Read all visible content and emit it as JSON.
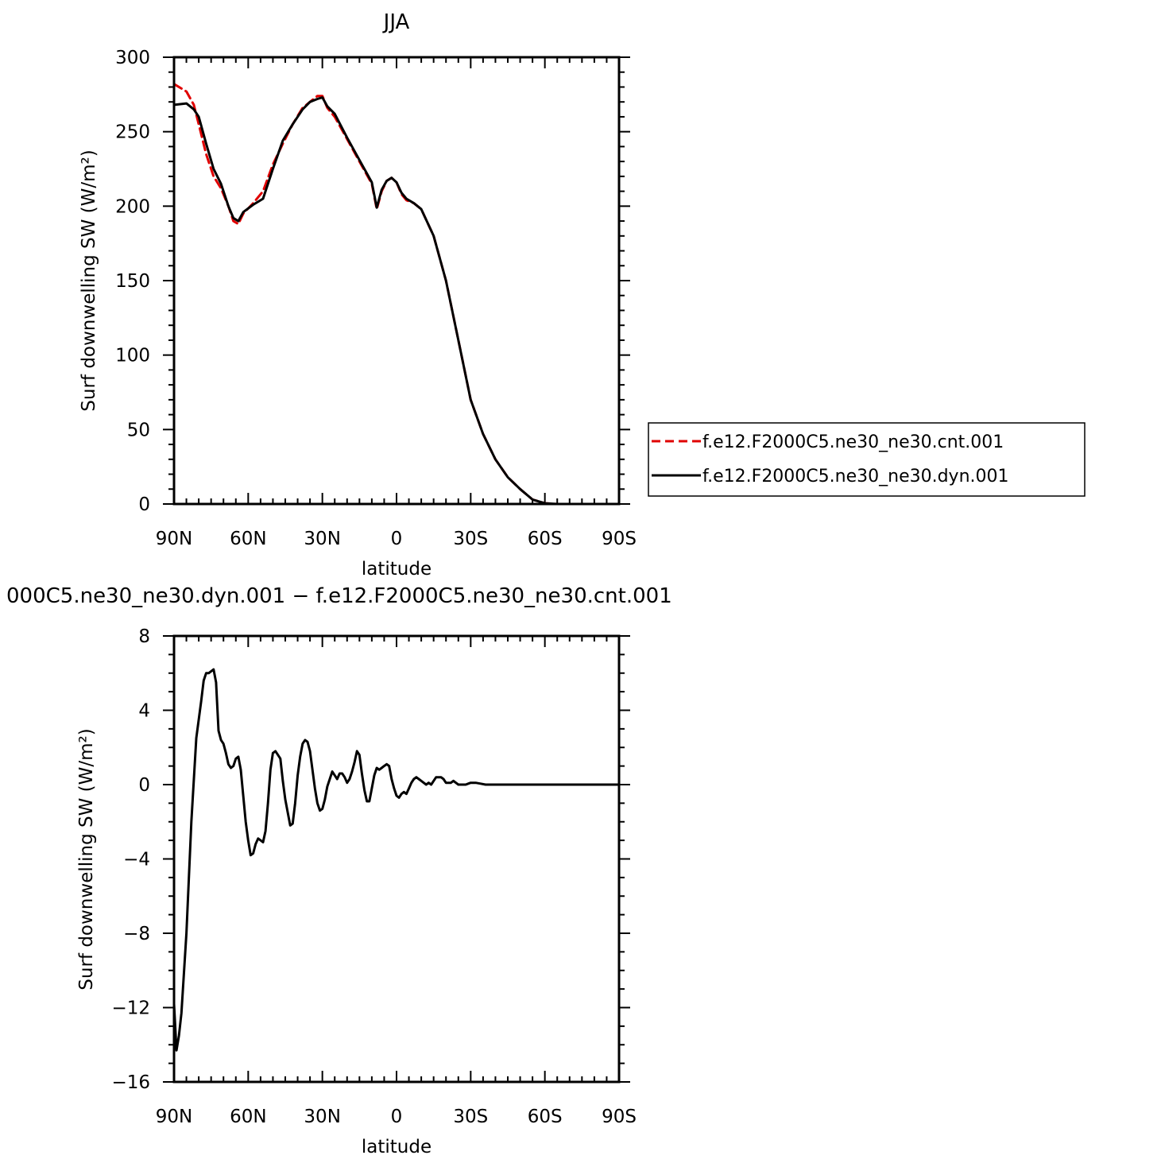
{
  "chart_data": [
    {
      "type": "line",
      "title": "JJA",
      "xlabel": "latitude",
      "ylabel": "Surf downwelling SW (W/m²)",
      "xticks": [
        "90N",
        "60N",
        "30N",
        "0",
        "30S",
        "60S",
        "90S"
      ],
      "yticks": [
        "300",
        "250",
        "200",
        "150",
        "100",
        "50",
        "0"
      ],
      "xlim": [
        90,
        -90
      ],
      "ylim": [
        0,
        300
      ],
      "grid": false,
      "legend": "right",
      "series": [
        {
          "name": "f.e12.F2000C5.ne30_ne30.cnt.001",
          "color": "#e00000",
          "dash": "dashed",
          "x": [
            90,
            85,
            82,
            80,
            77,
            74,
            71,
            68,
            66,
            64,
            62,
            58,
            54,
            50,
            46,
            42,
            38,
            35,
            32,
            30,
            28,
            25,
            20,
            15,
            10,
            8,
            6,
            4,
            2,
            0,
            -2,
            -4,
            -7,
            -10,
            -15,
            -20,
            -25,
            -30,
            -35,
            -40,
            -45,
            -50,
            -55,
            -60,
            -65,
            -70,
            -75,
            -80,
            -85,
            -90
          ],
          "values": [
            282,
            277,
            268,
            255,
            235,
            220,
            212,
            200,
            190,
            188,
            195,
            202,
            210,
            228,
            242,
            255,
            266,
            270,
            274,
            274,
            266,
            260,
            245,
            230,
            215,
            198,
            210,
            217,
            219,
            216,
            208,
            204,
            202,
            198,
            180,
            150,
            110,
            70,
            47,
            30,
            18,
            10,
            3,
            0.5,
            0,
            0,
            0,
            0,
            0,
            0
          ]
        },
        {
          "name": "f.e12.F2000C5.ne30_ne30.dyn.001",
          "color": "#000000",
          "dash": "solid",
          "x": [
            90,
            85,
            82,
            80,
            77,
            74,
            71,
            68,
            66,
            64,
            62,
            58,
            54,
            50,
            46,
            42,
            38,
            35,
            32,
            30,
            28,
            25,
            20,
            15,
            10,
            8,
            6,
            4,
            2,
            0,
            -2,
            -4,
            -7,
            -10,
            -15,
            -20,
            -25,
            -30,
            -35,
            -40,
            -45,
            -50,
            -55,
            -60,
            -65,
            -70,
            -75,
            -80,
            -85,
            -90
          ],
          "values": [
            268,
            269,
            265,
            260,
            242,
            225,
            215,
            200,
            192,
            190,
            196,
            201,
            205,
            225,
            244,
            255,
            265,
            270,
            272,
            273,
            267,
            262,
            246,
            231,
            216,
            199,
            211,
            217,
            219,
            216,
            209,
            205,
            202,
            198,
            180,
            150,
            110,
            70,
            47,
            30,
            18,
            10,
            3,
            0.5,
            0,
            0,
            0,
            0,
            0,
            0
          ]
        }
      ]
    },
    {
      "type": "line",
      "title": "000C5.ne30_ne30.dyn.001 − f.e12.F2000C5.ne30_ne30.cnt.001",
      "xlabel": "latitude",
      "ylabel": "Surf downwelling SW (W/m²)",
      "xticks": [
        "90N",
        "60N",
        "30N",
        "0",
        "30S",
        "60S",
        "90S"
      ],
      "yticks": [
        "8",
        "4",
        "0",
        "−4",
        "−8",
        "−12",
        "−16"
      ],
      "xlim": [
        90,
        -90
      ],
      "ylim": [
        -16,
        8
      ],
      "grid": false,
      "series": [
        {
          "color": "#000000",
          "dash": "solid",
          "x": [
            90,
            89,
            88,
            87,
            85,
            83,
            81,
            79,
            78,
            77,
            76,
            75,
            74,
            73,
            72,
            71,
            70,
            69,
            68,
            67,
            66,
            65,
            64,
            63,
            62,
            61,
            60,
            59,
            58,
            57,
            56,
            55,
            54,
            53,
            52,
            51,
            50,
            49,
            48,
            47,
            46,
            45,
            44,
            43,
            42,
            41,
            40,
            39,
            38,
            37,
            36,
            35,
            34,
            33,
            32,
            31,
            30,
            29,
            28,
            27,
            26,
            25,
            24,
            23,
            22,
            21,
            20,
            19,
            18,
            17,
            16,
            15,
            14,
            13,
            12,
            11,
            10,
            9,
            8,
            7,
            6,
            5,
            4,
            3,
            2,
            1,
            0,
            -1,
            -2,
            -3,
            -4,
            -5,
            -6,
            -7,
            -8,
            -9,
            -10,
            -11,
            -12,
            -13,
            -14,
            -15,
            -16,
            -17,
            -18,
            -19,
            -20,
            -21,
            -22,
            -23,
            -24,
            -25,
            -26,
            -27,
            -28,
            -29,
            -30,
            -32,
            -34,
            -36,
            -38,
            -40,
            -42,
            -44,
            -46,
            -48,
            -50,
            -52,
            -54,
            -56,
            -58,
            -60,
            -62,
            -64,
            -66,
            -68,
            -70,
            -72,
            -74,
            -76,
            -80,
            -85,
            -90
          ],
          "values": [
            -11.8,
            -14.3,
            -13.5,
            -12.3,
            -8,
            -2,
            2.5,
            4.5,
            5.6,
            6,
            6,
            6.1,
            6.2,
            5.5,
            2.9,
            2.4,
            2.2,
            1.7,
            1.1,
            0.9,
            1,
            1.4,
            1.5,
            0.8,
            -0.6,
            -2.0,
            -3.0,
            -3.8,
            -3.7,
            -3.2,
            -2.9,
            -3.0,
            -3.1,
            -2.5,
            -1.0,
            0.8,
            1.7,
            1.8,
            1.6,
            1.4,
            0.2,
            -0.8,
            -1.5,
            -2.2,
            -2.1,
            -1.0,
            0.5,
            1.5,
            2.2,
            2.4,
            2.3,
            1.8,
            0.8,
            -0.2,
            -1.0,
            -1.4,
            -1.3,
            -0.8,
            -0.1,
            0.3,
            0.7,
            0.5,
            0.3,
            0.6,
            0.6,
            0.4,
            0.1,
            0.3,
            0.7,
            1.2,
            1.8,
            1.6,
            0.6,
            -0.3,
            -0.9,
            -0.9,
            -0.2,
            0.5,
            0.9,
            0.8,
            0.9,
            1.0,
            1.1,
            1.0,
            0.3,
            -0.2,
            -0.6,
            -0.7,
            -0.5,
            -0.4,
            -0.5,
            -0.2,
            0.1,
            0.3,
            0.4,
            0.3,
            0.2,
            0.1,
            0,
            0.1,
            0,
            0.2,
            0.4,
            0.4,
            0.4,
            0.3,
            0.1,
            0.1,
            0.1,
            0.2,
            0.1,
            0,
            0,
            0,
            0,
            0.05,
            0.1,
            0.1,
            0.05,
            0,
            0,
            0,
            0,
            0,
            0,
            0,
            0,
            0,
            0,
            0,
            0,
            0,
            0,
            0,
            0,
            0,
            0,
            0,
            0,
            0,
            0,
            0,
            0
          ]
        }
      ]
    }
  ]
}
